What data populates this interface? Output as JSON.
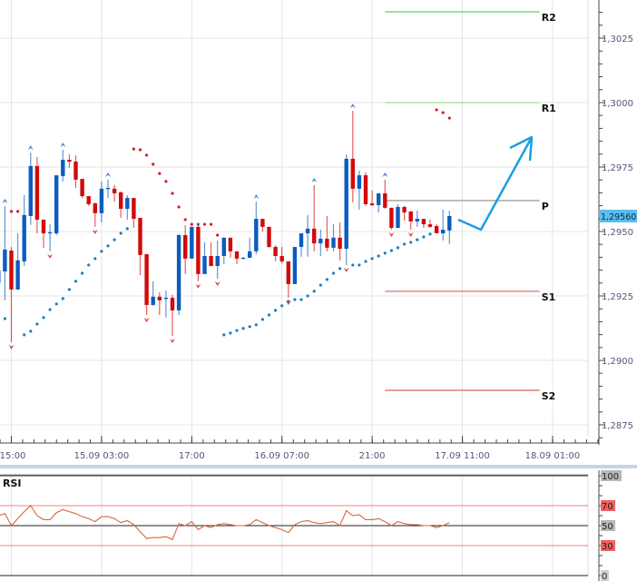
{
  "chart_data": [
    {
      "type": "candlestick",
      "title": "",
      "price_axis": {
        "ticks": [
          1.2875,
          1.29,
          1.2925,
          1.295,
          1.2975,
          1.3,
          1.3025
        ],
        "tick_labels": [
          "1,2875",
          "1,2900",
          "1,2925",
          "1,2950",
          "1,2975",
          "1,3000",
          "1,3025"
        ],
        "current_price": 1.2956,
        "current_price_label": "1,29560"
      },
      "time_axis": {
        "ticks": [
          {
            "index": 2,
            "label": "15:00"
          },
          {
            "index": 16,
            "label": "15.09 03:00"
          },
          {
            "index": 30,
            "label": "17:00"
          },
          {
            "index": 44,
            "label": "16.09 07:00"
          },
          {
            "index": 58,
            "label": "21:00"
          },
          {
            "index": 72,
            "label": "17.09 11:00"
          },
          {
            "index": 86,
            "label": "18.09 01:00"
          }
        ]
      },
      "grid": true,
      "colors": {
        "bull": "#0b5cbf",
        "bear": "#d20a0a",
        "sar_bull": "#1a7fc0",
        "sar_bear": "#d81c1c",
        "current_price_badge": "#59bdf0",
        "annotation_arrow": "#1aa0e0"
      },
      "candles_ohlc": [
        [
          1.293,
          1.29377,
          1.29271,
          1.29349
        ],
        [
          1.29345,
          1.29599,
          1.29233,
          1.2943
        ],
        [
          1.29426,
          1.2944,
          1.29071,
          1.29275
        ],
        [
          1.29275,
          1.29493,
          1.29275,
          1.29388
        ],
        [
          1.29384,
          1.29641,
          1.29366,
          1.29564
        ],
        [
          1.2956,
          1.29806,
          1.29525,
          1.29754
        ],
        [
          1.29754,
          1.29789,
          1.29493,
          1.29546
        ],
        [
          1.29546,
          1.29546,
          1.29437,
          1.29493
        ],
        [
          1.29493,
          1.29528,
          1.29423,
          1.29497
        ],
        [
          1.29493,
          1.29718,
          1.29486,
          1.29718
        ],
        [
          1.29715,
          1.29817,
          1.29694,
          1.29778
        ],
        [
          1.29778,
          1.29799,
          1.29747,
          1.29771
        ],
        [
          1.29771,
          1.29796,
          1.29669,
          1.29701
        ],
        [
          1.29704,
          1.29704,
          1.2963,
          1.29637
        ],
        [
          1.29637,
          1.29637,
          1.29599,
          1.29606
        ],
        [
          1.29609,
          1.29613,
          1.29518,
          1.29571
        ],
        [
          1.29571,
          1.29694,
          1.29535,
          1.29666
        ],
        [
          1.29666,
          1.29701,
          1.2963,
          1.29669
        ],
        [
          1.29666,
          1.2968,
          1.29616,
          1.29648
        ],
        [
          1.29652,
          1.29655,
          1.29553,
          1.29588
        ],
        [
          1.29588,
          1.29641,
          1.29546,
          1.2963
        ],
        [
          1.2963,
          1.2963,
          1.29514,
          1.29549
        ],
        [
          1.29553,
          1.29553,
          1.29331,
          1.29409
        ],
        [
          1.29412,
          1.29412,
          1.29176,
          1.29215
        ],
        [
          1.29215,
          1.29307,
          1.29212,
          1.29247
        ],
        [
          1.29247,
          1.29264,
          1.29176,
          1.29233
        ],
        [
          1.2924,
          1.29271,
          1.29166,
          1.29243
        ],
        [
          1.29243,
          1.29254,
          1.29095,
          1.29194
        ],
        [
          1.29194,
          1.2949,
          1.29176,
          1.29486
        ],
        [
          1.29486,
          1.29525,
          1.29335,
          1.29395
        ],
        [
          1.29395,
          1.29518,
          1.29395,
          1.29518
        ],
        [
          1.29518,
          1.29528,
          1.29307,
          1.29335
        ],
        [
          1.29335,
          1.29458,
          1.29335,
          1.29405
        ],
        [
          1.29405,
          1.29458,
          1.29366,
          1.29366
        ],
        [
          1.29366,
          1.29465,
          1.29317,
          1.29405
        ],
        [
          1.29405,
          1.29476,
          1.29373,
          1.29476
        ],
        [
          1.29476,
          1.29476,
          1.29398,
          1.29423
        ],
        [
          1.29423,
          1.29423,
          1.29373,
          1.29395
        ],
        [
          1.29398,
          1.29402,
          1.29395,
          1.29398
        ],
        [
          1.29398,
          1.29476,
          1.29398,
          1.29423
        ],
        [
          1.29423,
          1.29616,
          1.29412,
          1.29549
        ],
        [
          1.29549,
          1.29549,
          1.295,
          1.29518
        ],
        [
          1.29518,
          1.29518,
          1.29437,
          1.2944
        ],
        [
          1.2944,
          1.29447,
          1.29384,
          1.29405
        ],
        [
          1.29405,
          1.2944,
          1.29377,
          1.29384
        ],
        [
          1.29384,
          1.29384,
          1.29243,
          1.29296
        ],
        [
          1.29296,
          1.2944,
          1.29296,
          1.2944
        ],
        [
          1.2944,
          1.29493,
          1.29402,
          1.29493
        ],
        [
          1.29493,
          1.29564,
          1.29402,
          1.29511
        ],
        [
          1.29511,
          1.2968,
          1.29423,
          1.29454
        ],
        [
          1.29454,
          1.29507,
          1.29405,
          1.29472
        ],
        [
          1.29472,
          1.2956,
          1.29423,
          1.29437
        ],
        [
          1.29437,
          1.29528,
          1.29423,
          1.29476
        ],
        [
          1.29476,
          1.29535,
          1.29388,
          1.29433
        ],
        [
          1.29433,
          1.29799,
          1.2937,
          1.29782
        ],
        [
          1.29782,
          1.29968,
          1.29613,
          1.29666
        ],
        [
          1.29666,
          1.29736,
          1.29585,
          1.29718
        ],
        [
          1.29718,
          1.29729,
          1.29599,
          1.29606
        ],
        [
          1.29609,
          1.29659,
          1.29599,
          1.29602
        ],
        [
          1.29602,
          1.29648,
          1.29574,
          1.29648
        ],
        [
          1.29648,
          1.29701,
          1.29588,
          1.29592
        ],
        [
          1.29592,
          1.29592,
          1.29507,
          1.29514
        ],
        [
          1.29514,
          1.29606,
          1.29514,
          1.29595
        ],
        [
          1.29595,
          1.29599,
          1.29542,
          1.29574
        ],
        [
          1.29578,
          1.29578,
          1.29507,
          1.29539
        ],
        [
          1.29539,
          1.29581,
          1.29518,
          1.29549
        ],
        [
          1.29549,
          1.29549,
          1.29514,
          1.29528
        ],
        [
          1.29528,
          1.29546,
          1.29514,
          1.29518
        ],
        [
          1.29521,
          1.29528,
          1.29493,
          1.29493
        ],
        [
          1.29493,
          1.29585,
          1.29465,
          1.29507
        ],
        [
          1.29504,
          1.29581,
          1.29451,
          1.2956
        ]
      ],
      "fractals_up": [
        1,
        5,
        10,
        17,
        40,
        49,
        55,
        60
      ],
      "fractals_down": [
        2,
        8,
        15,
        23,
        27,
        31,
        34,
        45,
        54,
        61,
        64
      ],
      "parabolic_sar": [
        [
          1,
          1.29162
        ],
        [
          2,
          1.29578
        ],
        [
          3,
          1.29578
        ],
        [
          4,
          1.29099
        ],
        [
          5,
          1.29113
        ],
        [
          6,
          1.29141
        ],
        [
          7,
          1.29166
        ],
        [
          8,
          1.29197
        ],
        [
          9,
          1.29219
        ],
        [
          10,
          1.2924
        ],
        [
          11,
          1.29275
        ],
        [
          12,
          1.29307
        ],
        [
          13,
          1.29338
        ],
        [
          14,
          1.2937
        ],
        [
          15,
          1.29395
        ],
        [
          16,
          1.29423
        ],
        [
          17,
          1.29444
        ],
        [
          18,
          1.29468
        ],
        [
          19,
          1.29493
        ],
        [
          20,
          1.29511
        ],
        [
          21,
          1.2982
        ],
        [
          22,
          1.29817
        ],
        [
          23,
          1.29796
        ],
        [
          24,
          1.29761
        ],
        [
          25,
          1.29725
        ],
        [
          26,
          1.29694
        ],
        [
          27,
          1.29648
        ],
        [
          28,
          1.29595
        ],
        [
          29,
          1.29546
        ],
        [
          30,
          1.29528
        ],
        [
          31,
          1.29528
        ],
        [
          32,
          1.29528
        ],
        [
          33,
          1.29528
        ],
        [
          34,
          1.29486
        ],
        [
          35,
          1.29099
        ],
        [
          36,
          1.29106
        ],
        [
          37,
          1.29116
        ],
        [
          38,
          1.29124
        ],
        [
          39,
          1.29131
        ],
        [
          40,
          1.29138
        ],
        [
          41,
          1.29159
        ],
        [
          42,
          1.29176
        ],
        [
          43,
          1.29194
        ],
        [
          44,
          1.29212
        ],
        [
          45,
          1.29229
        ],
        [
          46,
          1.29236
        ],
        [
          47,
          1.29236
        ],
        [
          48,
          1.2925
        ],
        [
          49,
          1.29268
        ],
        [
          50,
          1.29292
        ],
        [
          51,
          1.29314
        ],
        [
          52,
          1.29338
        ],
        [
          53,
          1.29356
        ],
        [
          55,
          1.2937
        ],
        [
          56,
          1.2937
        ],
        [
          57,
          1.29384
        ],
        [
          58,
          1.29395
        ],
        [
          59,
          1.29405
        ],
        [
          60,
          1.29416
        ],
        [
          61,
          1.29426
        ],
        [
          62,
          1.29437
        ],
        [
          63,
          1.29451
        ],
        [
          64,
          1.29458
        ],
        [
          65,
          1.29468
        ],
        [
          66,
          1.29479
        ],
        [
          67,
          1.2949
        ],
        [
          68,
          1.29972
        ],
        [
          69,
          1.29961
        ],
        [
          70,
          1.2994
        ]
      ],
      "pivots": {
        "start_index": 60,
        "end_index": 84,
        "levels": [
          {
            "label": "R2",
            "value": 1.30352,
            "color": "#5cd65c"
          },
          {
            "label": "R1",
            "value": 1.3,
            "color": "#8fe88f"
          },
          {
            "label": "P",
            "value": 1.2962,
            "color": "#a0a0a0"
          },
          {
            "label": "S1",
            "value": 1.29268,
            "color": "#e07070"
          },
          {
            "label": "S2",
            "value": 1.28884,
            "color": "#e07070"
          }
        ]
      }
    },
    {
      "type": "line",
      "title": "RSI",
      "ylim": [
        0,
        100
      ],
      "levels": [
        {
          "value": 100,
          "label": "100",
          "color": "#222222",
          "badge": "#b8b8b8"
        },
        {
          "value": 70,
          "label": "70",
          "color": "#f08080",
          "badge": "#f06060"
        },
        {
          "value": 50,
          "label": "50",
          "color": "#222222",
          "badge": "#b8b8b8"
        },
        {
          "value": 30,
          "label": "30",
          "color": "#f08080",
          "badge": "#f06060"
        },
        {
          "value": 0,
          "label": "0",
          "color": "#222222",
          "badge": "#d0d0d0"
        }
      ],
      "line_color": "#d2693c",
      "values": [
        60,
        62,
        50,
        57,
        64,
        70,
        60,
        56,
        56,
        63,
        66,
        64,
        62,
        59,
        57,
        54,
        59,
        59,
        57,
        53,
        55,
        51,
        44,
        37,
        38,
        38,
        39,
        36,
        52,
        50,
        54,
        46,
        50,
        48,
        51,
        52,
        51,
        50,
        50,
        51,
        56,
        53,
        50,
        48,
        46,
        43,
        51,
        54,
        55,
        53,
        52,
        53,
        54,
        50,
        65,
        60,
        61,
        56,
        56,
        57,
        54,
        50,
        54,
        52,
        51,
        51,
        50,
        50,
        48,
        50,
        53
      ]
    }
  ]
}
